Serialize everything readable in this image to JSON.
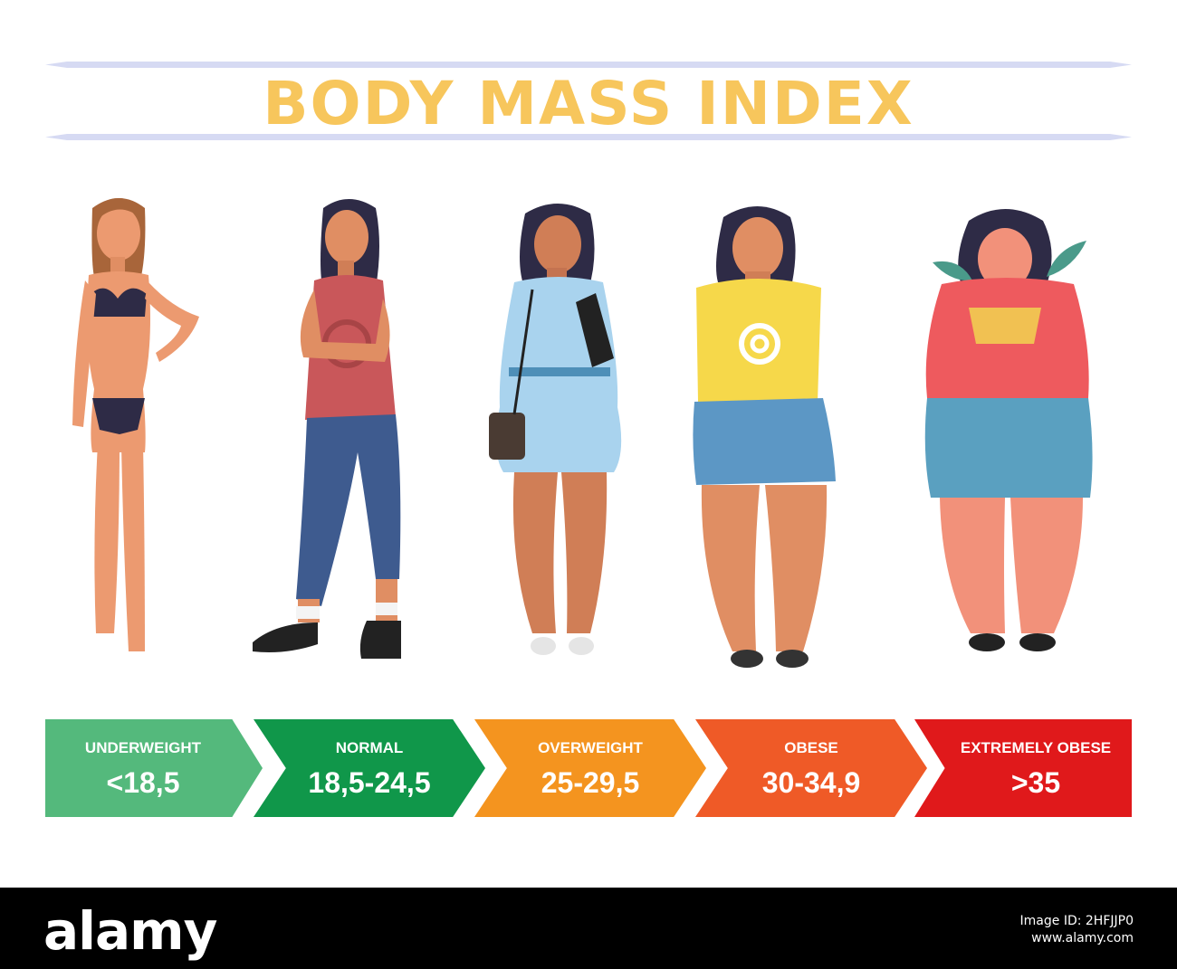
{
  "title": "BODY MASS INDEX",
  "categories": [
    {
      "label": "UNDERWEIGHT",
      "range": "<18,5",
      "color": "#54b97c"
    },
    {
      "label": "NORMAL",
      "range": "18,5-24,5",
      "color": "#10974a"
    },
    {
      "label": "OVERWEIGHT",
      "range": "25-29,5",
      "color": "#f4941f"
    },
    {
      "label": "OBESE",
      "range": "30-34,9",
      "color": "#ef5a27"
    },
    {
      "label": "EXTREMELY OBESE",
      "range": ">35",
      "color": "#e0191b"
    }
  ],
  "footer": {
    "brand": "alamy",
    "image_id_label": "Image ID: 2HFJJP0",
    "site": "www.alamy.com"
  }
}
